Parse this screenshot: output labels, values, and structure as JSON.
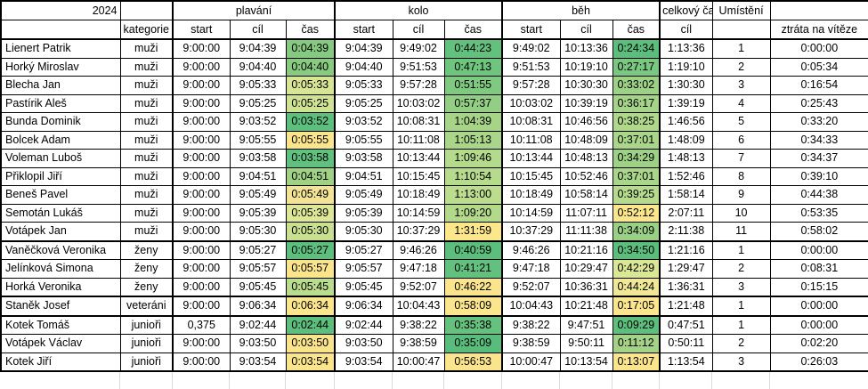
{
  "meta": {
    "year": "2024"
  },
  "table": {
    "sections": {
      "swim": "plavání",
      "bike": "kolo",
      "run": "běh"
    },
    "headers": {
      "kategorie": "kategorie",
      "start": "start",
      "cil": "cíl",
      "cas": "čas",
      "total": "celkový čas",
      "place": "Umístění",
      "loss": "ztráta na vítěze"
    },
    "rows": [
      {
        "name": "Lienert Patrik",
        "kategorie": "muži",
        "swim": [
          "9:00:00",
          "9:04:39",
          "0:04:39"
        ],
        "swim_color": "#85CA80",
        "bike": [
          "9:04:39",
          "9:49:02",
          "0:44:23"
        ],
        "bike_color": "#63C17E",
        "run": [
          "9:49:02",
          "10:13:36",
          "0:24:34"
        ],
        "run_color": "#5BBE7D",
        "total": "1:13:36",
        "place": "1",
        "loss": "0:00:00",
        "group_end": false
      },
      {
        "name": "Horký Miroslav",
        "kategorie": "muži",
        "swim": [
          "9:00:00",
          "9:04:40",
          "0:04:40"
        ],
        "swim_color": "#88CB80",
        "bike": [
          "9:04:40",
          "9:51:53",
          "0:47:13"
        ],
        "bike_color": "#6EC57E",
        "run": [
          "9:51:53",
          "10:19:10",
          "0:27:17"
        ],
        "run_color": "#79C780",
        "total": "1:19:10",
        "place": "2",
        "loss": "0:05:34",
        "group_end": false
      },
      {
        "name": "Blecha Jan",
        "kategorie": "muži",
        "swim": [
          "9:00:00",
          "9:05:33",
          "0:05:33"
        ],
        "swim_color": "#D7E595",
        "bike": [
          "9:05:33",
          "9:57:28",
          "0:51:55"
        ],
        "bike_color": "#7FC980",
        "run": [
          "9:57:28",
          "10:30:30",
          "0:33:02"
        ],
        "run_color": "#9DD186",
        "total": "1:30:30",
        "place": "3",
        "loss": "0:16:54",
        "group_end": false
      },
      {
        "name": "Pastírik Aleš",
        "kategorie": "muži",
        "swim": [
          "9:00:00",
          "9:05:25",
          "0:05:25"
        ],
        "swim_color": "#CFE393",
        "bike": [
          "9:05:25",
          "10:03:02",
          "0:57:37"
        ],
        "bike_color": "#92CE83",
        "run": [
          "10:03:02",
          "10:39:19",
          "0:36:17"
        ],
        "run_color": "#A5D488",
        "total": "1:39:19",
        "place": "4",
        "loss": "0:25:43",
        "group_end": false
      },
      {
        "name": "Bunda Dominik",
        "kategorie": "muži",
        "swim": [
          "9:00:00",
          "9:03:52",
          "0:03:52"
        ],
        "swim_color": "#5DBF7D",
        "bike": [
          "9:03:52",
          "10:08:31",
          "1:04:39"
        ],
        "bike_color": "#A7D588",
        "run": [
          "10:08:31",
          "10:46:56",
          "0:38:25"
        ],
        "run_color": "#B0D88B",
        "total": "1:46:56",
        "place": "5",
        "loss": "0:33:20",
        "group_end": false
      },
      {
        "name": "Bolcek Adam",
        "kategorie": "muži",
        "swim": [
          "9:00:00",
          "9:05:55",
          "0:05:55"
        ],
        "swim_color": "#FAE58C",
        "bike": [
          "9:05:55",
          "10:11:08",
          "1:05:13"
        ],
        "bike_color": "#A9D688",
        "run": [
          "10:11:08",
          "10:48:09",
          "0:37:01"
        ],
        "run_color": "#AAD689",
        "total": "1:48:09",
        "place": "6",
        "loss": "0:34:33",
        "group_end": false
      },
      {
        "name": "Voleman Luboš",
        "kategorie": "muži",
        "swim": [
          "9:00:00",
          "9:03:58",
          "0:03:58"
        ],
        "swim_color": "#60C07E",
        "bike": [
          "9:03:58",
          "10:13:44",
          "1:09:46"
        ],
        "bike_color": "#B4DA8B",
        "run": [
          "10:13:44",
          "10:48:13",
          "0:34:29"
        ],
        "run_color": "#9CD186",
        "total": "1:48:13",
        "place": "7",
        "loss": "0:34:37",
        "group_end": false
      },
      {
        "name": "Přiklopil Jiří",
        "kategorie": "muži",
        "swim": [
          "9:00:00",
          "9:04:51",
          "0:04:51"
        ],
        "swim_color": "#A0D286",
        "bike": [
          "9:04:51",
          "10:15:45",
          "1:10:54"
        ],
        "bike_color": "#B7DB8C",
        "run": [
          "10:15:45",
          "10:52:46",
          "0:37:01"
        ],
        "run_color": "#AAD689",
        "total": "1:52:46",
        "place": "8",
        "loss": "0:39:10",
        "group_end": false
      },
      {
        "name": "Beneš Pavel",
        "kategorie": "muži",
        "swim": [
          "9:00:00",
          "9:05:49",
          "0:05:49"
        ],
        "swim_color": "#F2E494",
        "bike": [
          "9:05:49",
          "10:18:49",
          "1:13:00"
        ],
        "bike_color": "#BCDD8E",
        "run": [
          "10:18:49",
          "10:58:14",
          "0:39:25"
        ],
        "run_color": "#B6DB8C",
        "total": "1:58:14",
        "place": "9",
        "loss": "0:44:38",
        "group_end": false
      },
      {
        "name": "Semotán Lukáš",
        "kategorie": "muži",
        "swim": [
          "9:00:00",
          "9:05:39",
          "0:05:39"
        ],
        "swim_color": "#DEE797",
        "bike": [
          "9:05:39",
          "10:14:59",
          "1:09:20"
        ],
        "bike_color": "#B3D98A",
        "run": [
          "10:14:59",
          "11:07:11",
          "0:52:12"
        ],
        "run_color": "#FBE68C",
        "total": "2:07:11",
        "place": "10",
        "loss": "0:53:35",
        "group_end": false
      },
      {
        "name": "Votápek Jan",
        "kategorie": "muži",
        "swim": [
          "9:00:00",
          "9:05:30",
          "0:05:30"
        ],
        "swim_color": "#C8E090",
        "bike": [
          "9:05:30",
          "10:37:29",
          "1:31:59"
        ],
        "bike_color": "#FCE78B",
        "run": [
          "10:37:29",
          "11:11:38",
          "0:34:09"
        ],
        "run_color": "#9AD085",
        "total": "2:11:38",
        "place": "11",
        "loss": "0:58:02",
        "group_end": true
      },
      {
        "name": "Vaněčková Veronika",
        "kategorie": "ženy",
        "swim": [
          "9:00:00",
          "9:05:27",
          "0:05:27"
        ],
        "swim_color": "#5DBF7D",
        "bike": [
          "9:05:27",
          "9:46:26",
          "0:40:59"
        ],
        "bike_color": "#5BBE7D",
        "run": [
          "9:46:26",
          "10:21:16",
          "0:34:50"
        ],
        "run_color": "#5BBE7D",
        "total": "1:21:16",
        "place": "1",
        "loss": "0:00:00",
        "group_end": false
      },
      {
        "name": "Jelínková Simona",
        "kategorie": "ženy",
        "swim": [
          "9:00:00",
          "9:05:57",
          "0:05:57"
        ],
        "swim_color": "#FAE58C",
        "bike": [
          "9:05:57",
          "9:47:18",
          "0:41:21"
        ],
        "bike_color": "#62C17E",
        "run": [
          "9:47:18",
          "10:29:47",
          "0:42:29"
        ],
        "run_color": "#DAE794",
        "total": "1:29:47",
        "place": "2",
        "loss": "0:08:31",
        "group_end": false
      },
      {
        "name": "Horká Veronika",
        "kategorie": "ženy",
        "swim": [
          "9:00:00",
          "9:05:45",
          "0:05:45"
        ],
        "swim_color": "#BADC8D",
        "bike": [
          "9:05:45",
          "9:52:07",
          "0:46:22"
        ],
        "bike_color": "#FAE58C",
        "run": [
          "9:52:07",
          "10:36:31",
          "0:44:24"
        ],
        "run_color": "#F2E795",
        "total": "1:36:31",
        "place": "3",
        "loss": "0:15:15",
        "group_end": true
      },
      {
        "name": "Staněk Josef",
        "kategorie": "veteráni",
        "swim": [
          "9:00:00",
          "9:06:34",
          "0:06:34"
        ],
        "swim_color": "#FBE68D",
        "bike": [
          "9:06:34",
          "10:04:43",
          "0:58:09"
        ],
        "bike_color": "#FBE68D",
        "run": [
          "10:04:43",
          "10:21:48",
          "0:17:05"
        ],
        "run_color": "#FBE68D",
        "total": "1:21:48",
        "place": "1",
        "loss": "0:00:00",
        "group_end": true
      },
      {
        "name": "Kotek Tomáš",
        "kategorie": "junioři",
        "swim": [
          "0,375",
          "9:02:44",
          "0:02:44"
        ],
        "swim_color": "#5DBF7D",
        "bike": [
          "9:02:44",
          "9:38:22",
          "0:35:38"
        ],
        "bike_color": "#65C27E",
        "run": [
          "9:38:22",
          "9:47:51",
          "0:09:29"
        ],
        "run_color": "#5DBF7D",
        "total": "0:47:51",
        "place": "1",
        "loss": "0:00:00",
        "group_end": false
      },
      {
        "name": "Votápek Václav",
        "kategorie": "junioři",
        "swim": [
          "9:00:00",
          "9:03:50",
          "0:03:50"
        ],
        "swim_color": "#F9E48B",
        "bike": [
          "9:03:50",
          "9:38:59",
          "0:35:09"
        ],
        "bike_color": "#58BD7C",
        "run": [
          "9:38:59",
          "9:50:11",
          "0:11:12"
        ],
        "run_color": "#A4D387",
        "total": "0:50:11",
        "place": "2",
        "loss": "0:02:20",
        "group_end": false
      },
      {
        "name": "Kotek Jiří",
        "kategorie": "junioři",
        "swim": [
          "9:00:00",
          "9:03:54",
          "0:03:54"
        ],
        "swim_color": "#FAE58C",
        "bike": [
          "9:03:54",
          "10:00:47",
          "0:56:53"
        ],
        "bike_color": "#FAE58C",
        "run": [
          "10:00:47",
          "10:13:54",
          "0:13:07"
        ],
        "run_color": "#FAE58C",
        "total": "1:13:54",
        "place": "3",
        "loss": "0:26:03",
        "group_end": true
      }
    ]
  }
}
